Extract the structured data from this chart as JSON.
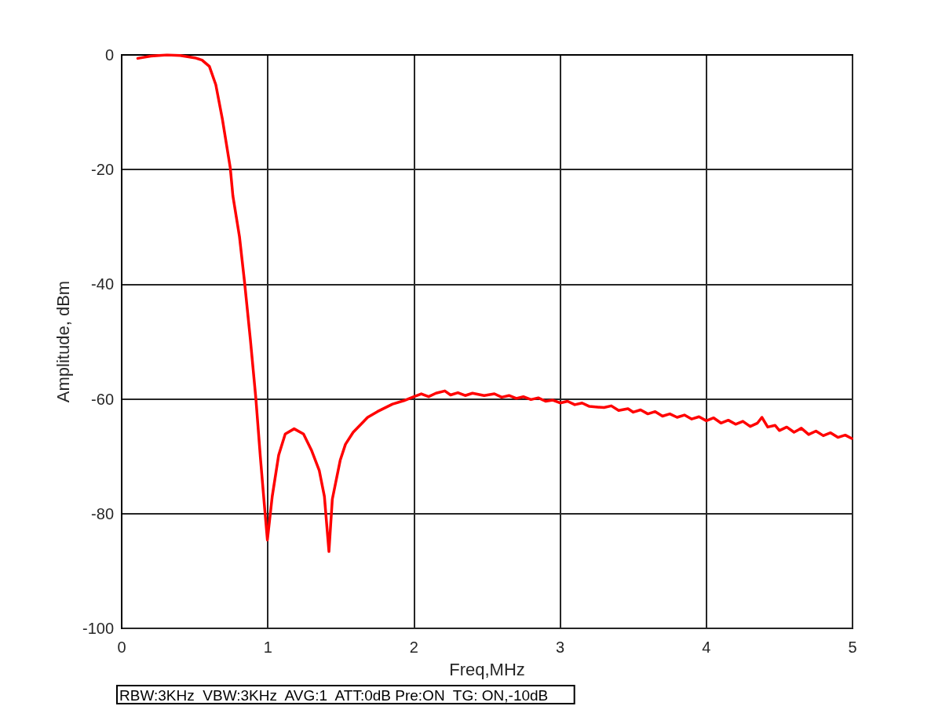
{
  "chart_data": {
    "type": "line",
    "xlabel": "Freq,MHz",
    "ylabel": "Amplitude, dBm",
    "annotations": [
      "RBW:3KHz  VBW:3KHz  AVG:1  ATT:0dB Pre:ON  TG: ON,-10dB"
    ],
    "xlim": [
      0,
      5
    ],
    "xticks": [
      0,
      1,
      2,
      3,
      4,
      5
    ],
    "ylim": [
      -100,
      0
    ],
    "yticks": [
      -100,
      -80,
      -60,
      -40,
      -20,
      0
    ],
    "grid": true,
    "marker": "none",
    "line_style": "solid",
    "series": [
      {
        "color": "#ff0000",
        "x": [
          0.11,
          0.2,
          0.31,
          0.4,
          0.5,
          0.55,
          0.6,
          0.644,
          0.689,
          0.743,
          0.761,
          0.806,
          0.841,
          0.88,
          0.918,
          0.949,
          0.976,
          0.997,
          1.03,
          1.074,
          1.119,
          1.18,
          1.244,
          1.298,
          1.352,
          1.387,
          1.418,
          1.441,
          1.495,
          1.531,
          1.584,
          1.683,
          1.75,
          1.853,
          1.93,
          2.0,
          2.05,
          2.1,
          2.15,
          2.211,
          2.25,
          2.3,
          2.35,
          2.4,
          2.48,
          2.55,
          2.6,
          2.65,
          2.7,
          2.748,
          2.8,
          2.85,
          2.9,
          2.95,
          3.0,
          3.05,
          3.1,
          3.15,
          3.2,
          3.3,
          3.35,
          3.4,
          3.464,
          3.5,
          3.55,
          3.6,
          3.65,
          3.7,
          3.75,
          3.8,
          3.85,
          3.9,
          3.95,
          4.0,
          4.05,
          4.1,
          4.15,
          4.2,
          4.25,
          4.3,
          4.35,
          4.38,
          4.42,
          4.47,
          4.5,
          4.55,
          4.6,
          4.65,
          4.7,
          4.75,
          4.8,
          4.85,
          4.9,
          4.95,
          4.995
        ],
        "values": [
          -0.6,
          -0.2,
          0.0,
          -0.1,
          -0.5,
          -0.9,
          -2,
          -5.2,
          -11.2,
          -19.7,
          -24.6,
          -31.7,
          -39.7,
          -49.5,
          -59.9,
          -70.2,
          -78.4,
          -84.6,
          -77,
          -69.8,
          -66.1,
          -65.2,
          -66.1,
          -68.9,
          -72.5,
          -77,
          -86.6,
          -77.5,
          -70.7,
          -67.9,
          -65.8,
          -63.2,
          -62.2,
          -60.9,
          -60.3,
          -59.6,
          -59.1,
          -59.6,
          -59.0,
          -58.6,
          -59.3,
          -58.9,
          -59.4,
          -59.0,
          -59.4,
          -59.1,
          -59.7,
          -59.4,
          -59.9,
          -59.6,
          -60.1,
          -59.8,
          -60.4,
          -60.2,
          -60.7,
          -60.4,
          -61.0,
          -60.7,
          -61.3,
          -61.5,
          -61.2,
          -62.0,
          -61.7,
          -62.3,
          -61.9,
          -62.6,
          -62.2,
          -63.0,
          -62.6,
          -63.2,
          -62.8,
          -63.5,
          -63.1,
          -63.8,
          -63.3,
          -64.2,
          -63.7,
          -64.4,
          -63.9,
          -64.8,
          -64.2,
          -63.2,
          -64.9,
          -64.6,
          -65.5,
          -64.9,
          -65.8,
          -65.1,
          -66.2,
          -65.6,
          -66.4,
          -65.9,
          -66.7,
          -66.3,
          -66.9
        ]
      }
    ]
  }
}
